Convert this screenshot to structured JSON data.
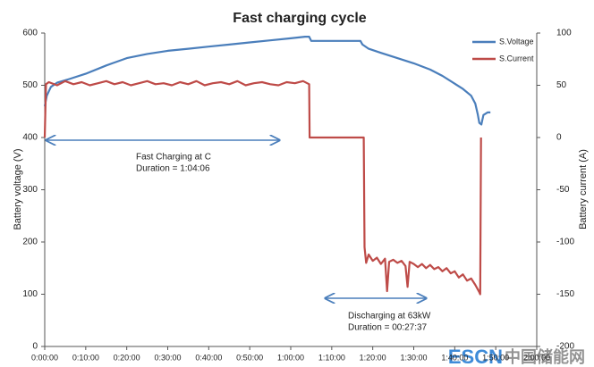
{
  "chart_data": {
    "type": "line",
    "title": "Fast charging cycle",
    "y_label": "Battery voltage (V)",
    "y2_label": "Battery current (A)",
    "grid": false,
    "legend": "top-right",
    "annotations": [
      "Fast Charging at C",
      "Duration = 1:04:06",
      "Discharging at 63kW",
      "Duration = 00:27:37"
    ],
    "watermark": [
      "ESCN",
      "中国储能网"
    ],
    "xlim": [
      0,
      120
    ],
    "xticks": [
      {
        "value": 0,
        "label": "0:00:00"
      },
      {
        "value": 10,
        "label": "0:10:00"
      },
      {
        "value": 20,
        "label": "0:20:00"
      },
      {
        "value": 30,
        "label": "0:30:00"
      },
      {
        "value": 40,
        "label": "0:40:00"
      },
      {
        "value": 50,
        "label": "0:50:00"
      },
      {
        "value": 60,
        "label": "1:00:00"
      },
      {
        "value": 70,
        "label": "1:10:00"
      },
      {
        "value": 80,
        "label": "1:20:00"
      },
      {
        "value": 90,
        "label": "1:30:00"
      },
      {
        "value": 100,
        "label": "1:40:00"
      },
      {
        "value": 110,
        "label": "1:50:00"
      },
      {
        "value": 120,
        "label": "2:00:00"
      }
    ],
    "ylim": [
      0,
      600
    ],
    "yticks": [
      0,
      100,
      200,
      300,
      400,
      500,
      600
    ],
    "y2lim": [
      -200,
      100
    ],
    "y2ticks": [
      -200,
      -150,
      -100,
      -50,
      0,
      50,
      100
    ],
    "series": [
      {
        "name": "S.Voltage",
        "color": "#4a7ebb",
        "axis": "y",
        "x": [
          0,
          0.5,
          1.5,
          3,
          6,
          10,
          15,
          20,
          25,
          30,
          35,
          40,
          45,
          50,
          55,
          60,
          63.5,
          64.5,
          65,
          70,
          77,
          77.5,
          79,
          82,
          86,
          90,
          94,
          97,
          100,
          102,
          104,
          105,
          105.6,
          106,
          106.5,
          107,
          108,
          108.7
        ],
        "values": [
          460,
          480,
          497,
          505,
          512,
          522,
          538,
          552,
          560,
          566,
          570,
          574,
          578,
          582,
          586,
          590,
          593,
          593,
          585,
          585,
          585,
          578,
          570,
          562,
          552,
          542,
          530,
          518,
          503,
          493,
          480,
          465,
          445,
          428,
          425,
          443,
          448,
          448
        ]
      },
      {
        "name": "S.Current",
        "color": "#be4b48",
        "axis": "y2",
        "x": [
          0,
          0.3,
          1,
          3,
          5,
          7,
          9,
          11,
          13,
          15,
          17,
          19,
          21,
          23,
          25,
          27,
          29,
          31,
          33,
          35,
          37,
          39,
          41,
          43,
          45,
          47,
          49,
          51,
          53,
          55,
          57,
          59,
          61,
          63,
          64.5,
          64.6,
          77.8,
          78,
          78.4,
          79,
          80,
          81,
          82,
          83,
          83.5,
          84,
          85,
          86,
          87,
          88,
          88.5,
          89,
          90,
          91,
          92,
          93,
          94,
          95,
          96,
          97,
          98,
          99,
          100,
          101,
          102,
          103,
          104,
          105,
          106,
          106.2,
          106.4
        ],
        "values": [
          0,
          51,
          53,
          50,
          54,
          51,
          53,
          50,
          52,
          54,
          51,
          53,
          50,
          52,
          54,
          51,
          52,
          50,
          53,
          51,
          54,
          50,
          52,
          53,
          51,
          54,
          50,
          52,
          53,
          51,
          50,
          53,
          52,
          54,
          51,
          0,
          0,
          -105,
          -120,
          -112,
          -118,
          -115,
          -121,
          -116,
          -147,
          -119,
          -117,
          -120,
          -118,
          -123,
          -143,
          -119,
          -121,
          -124,
          -121,
          -125,
          -122,
          -126,
          -124,
          -128,
          -125,
          -130,
          -128,
          -134,
          -131,
          -137,
          -135,
          -141,
          -148,
          -150,
          0
        ]
      }
    ]
  }
}
